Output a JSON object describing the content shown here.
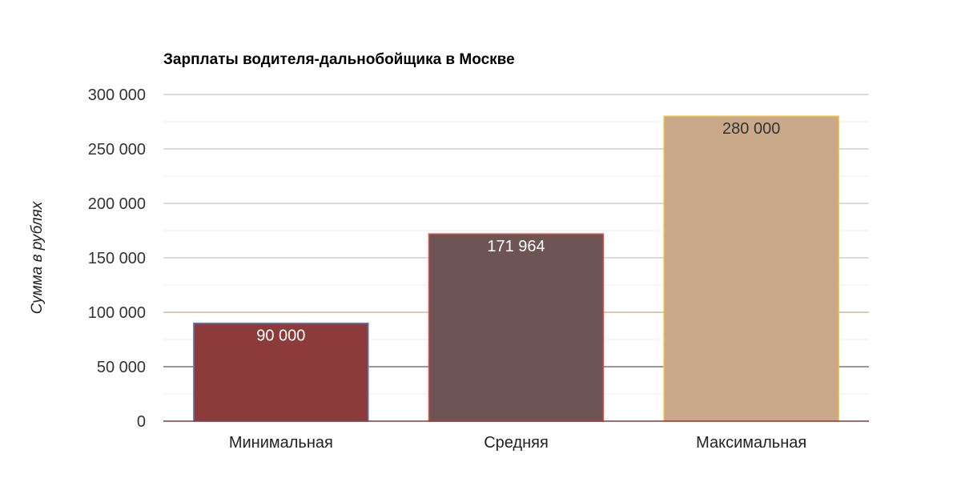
{
  "chart_data": {
    "type": "bar",
    "title": "Зарплаты водителя-дальнобойщика в Москве",
    "xlabel": "",
    "ylabel": "Сумма в рублях",
    "categories": [
      "Минимальная",
      "Средняя",
      "Максимальная"
    ],
    "values": [
      90000,
      171964,
      280000
    ],
    "data_labels": [
      "90 000",
      "171 964",
      "280 000"
    ],
    "ylim": [
      0,
      300000
    ],
    "yticks": [
      0,
      50000,
      100000,
      150000,
      200000,
      250000,
      300000
    ],
    "ytick_labels": [
      "0",
      "50 000",
      "100 000",
      "150 000",
      "200 000",
      "250 000",
      "300 000"
    ],
    "minor_grid_step": 25000,
    "grid": true,
    "legend": "none",
    "colors": {
      "bars": [
        "#8c3a3a",
        "#6e5454",
        "#c9a98a"
      ],
      "bar_borders": [
        "#5b7fd1",
        "#e05050",
        "#f0c040"
      ],
      "data_labels": [
        "#ffffff",
        "#ffffff",
        "#333333"
      ],
      "major_grid": "#c8c8c8",
      "minor_grid": "#eeeeee",
      "grid_100000": "#c9a98a",
      "grid_50000": "#6e5454",
      "baseline": "#8c3a3a"
    }
  }
}
